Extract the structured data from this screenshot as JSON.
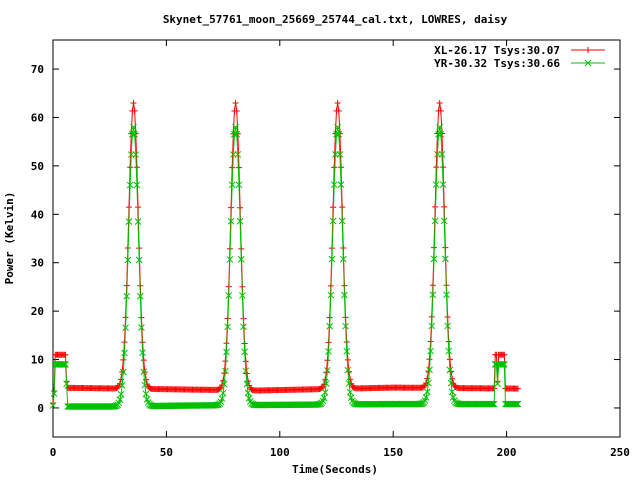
{
  "chart_data": {
    "type": "line",
    "title": "Skynet_57761_moon_25669_25744_cal.txt, LOWRES, daisy",
    "xlabel": "Time(Seconds)",
    "ylabel": "Power (Kelvin)",
    "xlim": [
      0,
      250
    ],
    "ylim": [
      -6,
      76
    ],
    "xticks": [
      0,
      50,
      100,
      150,
      200,
      250
    ],
    "yticks": [
      0,
      10,
      20,
      30,
      40,
      50,
      60,
      70
    ],
    "grid": false,
    "legend_position": "top-right",
    "peaks": [
      35.5,
      80.5,
      125.5,
      170.5
    ],
    "series": [
      {
        "name": "XL-26.17 Tsys:30.07",
        "color": "#ff0000",
        "marker": "plus",
        "step": 0.5,
        "t_start": 0,
        "t_end": 205,
        "cal_windows": [
          [
            1,
            5.5,
            11
          ],
          [
            195,
            199,
            11
          ]
        ],
        "spike_values": [
          [
            0,
            1
          ],
          [
            0.5,
            3.5
          ],
          [
            6,
            5.5
          ],
          [
            196,
            5.5
          ]
        ],
        "baseline_segments": [
          [
            0,
            4.2
          ],
          [
            30,
            4.0
          ],
          [
            60,
            3.8
          ],
          [
            90,
            3.6
          ],
          [
            150,
            4.2
          ],
          [
            205,
            4.0
          ]
        ],
        "peak_height": 63,
        "peak_width": 2.1
      },
      {
        "name": "YR-30.32 Tsys:30.66",
        "color": "#00c000",
        "marker": "cross",
        "step": 0.5,
        "t_start": 0,
        "t_end": 205,
        "cal_windows": [
          [
            1,
            5.5,
            9
          ],
          [
            195,
            199,
            9
          ]
        ],
        "spike_values": [
          [
            0,
            0.5
          ],
          [
            0.5,
            3
          ],
          [
            6,
            5
          ],
          [
            196,
            5
          ]
        ],
        "baseline_segments": [
          [
            0,
            0.3
          ],
          [
            30,
            0.3
          ],
          [
            60,
            0.5
          ],
          [
            90,
            0.6
          ],
          [
            150,
            0.8
          ],
          [
            205,
            0.8
          ]
        ],
        "peak_height": 58,
        "peak_width": 2.2
      }
    ]
  },
  "colors": {
    "axis": "#000000",
    "background": "#ffffff"
  }
}
